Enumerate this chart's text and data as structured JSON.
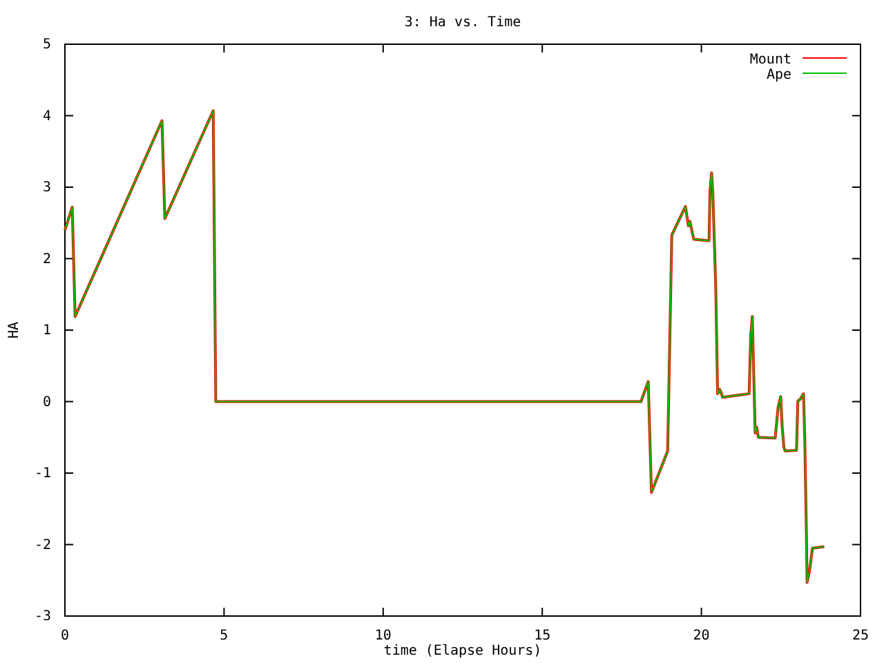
{
  "chart_data": {
    "type": "line",
    "title": "3: Ha vs. Time",
    "xlabel": "time (Elapse Hours)",
    "ylabel": "HA",
    "x": [
      0,
      0.23,
      0.32,
      3.05,
      3.14,
      4.66,
      4.74,
      18.1,
      18.33,
      18.43,
      18.94,
      19.07,
      19.5,
      19.59,
      19.64,
      19.76,
      20.24,
      20.27,
      20.32,
      20.36,
      20.45,
      20.51,
      20.58,
      20.67,
      21.3,
      21.5,
      21.55,
      21.6,
      21.69,
      21.74,
      21.79,
      22.32,
      22.41,
      22.49,
      22.54,
      22.59,
      22.63,
      22.99,
      23.03,
      23.1,
      23.21,
      23.25,
      23.3,
      23.32,
      23.39,
      23.49,
      23.86
    ],
    "series": [
      {
        "name": "Mount",
        "color": "#ff0000",
        "values": [
          2.4,
          2.72,
          1.19,
          3.93,
          2.56,
          4.07,
          0,
          0,
          0.28,
          -1.27,
          -0.69,
          2.33,
          2.73,
          2.46,
          2.52,
          2.27,
          2.25,
          2.95,
          3.2,
          2.91,
          1.62,
          0.11,
          0.17,
          0.06,
          0.1,
          0.11,
          0.92,
          1.19,
          -0.44,
          -0.36,
          -0.5,
          -0.51,
          -0.08,
          0.07,
          -0.36,
          -0.63,
          -0.69,
          -0.68,
          0.01,
          0.03,
          0.11,
          -0.57,
          -1.85,
          -2.53,
          -2.39,
          -2.05,
          -2.03
        ]
      },
      {
        "name": "Ape",
        "color": "#00c000",
        "values": [
          2.4,
          2.72,
          1.19,
          3.93,
          2.56,
          4.07,
          0,
          0,
          0.28,
          -1.27,
          -0.69,
          2.33,
          2.73,
          2.46,
          2.52,
          2.27,
          2.25,
          2.95,
          3.2,
          2.91,
          1.62,
          0.11,
          0.17,
          0.06,
          0.1,
          0.11,
          0.92,
          1.19,
          -0.44,
          -0.36,
          -0.5,
          -0.51,
          -0.08,
          0.07,
          -0.36,
          -0.63,
          -0.69,
          -0.68,
          0.01,
          0.03,
          0.11,
          -0.57,
          -1.85,
          -2.53,
          -2.39,
          -2.05,
          -2.03
        ]
      }
    ],
    "xlim": [
      0,
      25
    ],
    "xticks": [
      0,
      5,
      10,
      15,
      20,
      25
    ],
    "ylim": [
      -3,
      5
    ],
    "yticks": [
      -3,
      -2,
      -1,
      0,
      1,
      2,
      3,
      4,
      5
    ],
    "legend": "top right",
    "grid": false,
    "marker": "none",
    "line_style": "solid"
  }
}
